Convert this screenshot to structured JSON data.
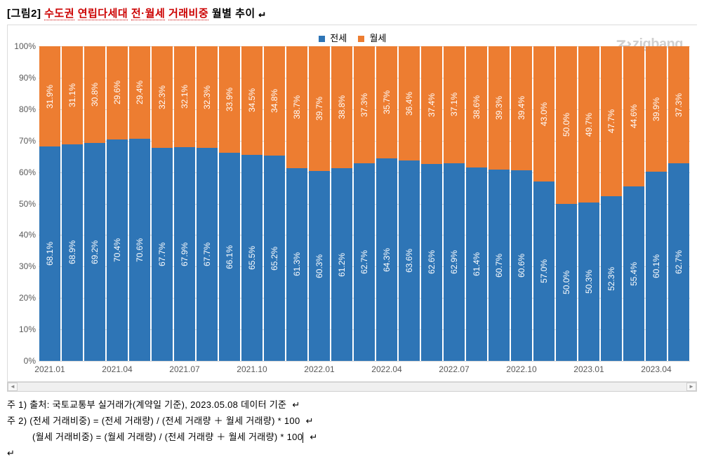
{
  "title": {
    "prefix": "[그림2] ",
    "red_words": [
      "수도권",
      "연립다세대",
      "전·월세",
      "거래비중"
    ],
    "suffix": " 월별 추이 "
  },
  "chart": {
    "type": "stacked-bar-100",
    "background_color": "#ffffff",
    "grid_color": "#d9d9d9",
    "axis_text_color": "#595959",
    "title_red_color": "#cc0000",
    "legend": {
      "items": [
        {
          "label": "전세",
          "color": "#2e75b6"
        },
        {
          "label": "월세",
          "color": "#ed7d31"
        }
      ]
    },
    "brand": {
      "text": "zigbang",
      "color": "#d0d0d0"
    },
    "y": {
      "min": 0,
      "max": 100,
      "step": 10,
      "suffix": "%",
      "tick_labels": [
        "0%",
        "10%",
        "20%",
        "30%",
        "40%",
        "50%",
        "60%",
        "70%",
        "80%",
        "90%",
        "100%"
      ]
    },
    "series_colors": {
      "jeonse": "#2e75b6",
      "wolse": "#ed7d31"
    },
    "bar_label_color": "#ffffff",
    "bar_label_fontsize": 12,
    "data": [
      {
        "period": "2021.01",
        "jeonse": 68.1,
        "wolse": 31.9,
        "xlabel": "2021.01"
      },
      {
        "period": "2021.02",
        "jeonse": 68.9,
        "wolse": 31.1,
        "xlabel": null
      },
      {
        "period": "2021.03",
        "jeonse": 69.2,
        "wolse": 30.8,
        "xlabel": null
      },
      {
        "period": "2021.04",
        "jeonse": 70.4,
        "wolse": 29.6,
        "xlabel": "2021.04"
      },
      {
        "period": "2021.05",
        "jeonse": 70.6,
        "wolse": 29.4,
        "xlabel": null
      },
      {
        "period": "2021.06",
        "jeonse": 67.7,
        "wolse": 32.3,
        "xlabel": null
      },
      {
        "period": "2021.07",
        "jeonse": 67.9,
        "wolse": 32.1,
        "xlabel": "2021.07"
      },
      {
        "period": "2021.08",
        "jeonse": 67.7,
        "wolse": 32.3,
        "xlabel": null
      },
      {
        "period": "2021.09",
        "jeonse": 66.1,
        "wolse": 33.9,
        "xlabel": null
      },
      {
        "period": "2021.10",
        "jeonse": 65.5,
        "wolse": 34.5,
        "xlabel": "2021.10"
      },
      {
        "period": "2021.11",
        "jeonse": 65.2,
        "wolse": 34.8,
        "xlabel": null
      },
      {
        "period": "2021.12",
        "jeonse": 61.3,
        "wolse": 38.7,
        "xlabel": null
      },
      {
        "period": "2022.01",
        "jeonse": 60.3,
        "wolse": 39.7,
        "xlabel": "2022.01"
      },
      {
        "period": "2022.02",
        "jeonse": 61.2,
        "wolse": 38.8,
        "xlabel": null
      },
      {
        "period": "2022.03",
        "jeonse": 62.7,
        "wolse": 37.3,
        "xlabel": null
      },
      {
        "period": "2022.04",
        "jeonse": 64.3,
        "wolse": 35.7,
        "xlabel": "2022.04"
      },
      {
        "period": "2022.05",
        "jeonse": 63.6,
        "wolse": 36.4,
        "xlabel": null
      },
      {
        "period": "2022.06",
        "jeonse": 62.6,
        "wolse": 37.4,
        "xlabel": null
      },
      {
        "period": "2022.07",
        "jeonse": 62.9,
        "wolse": 37.1,
        "xlabel": "2022.07"
      },
      {
        "period": "2022.08",
        "jeonse": 61.4,
        "wolse": 38.6,
        "xlabel": null
      },
      {
        "period": "2022.09",
        "jeonse": 60.7,
        "wolse": 39.3,
        "xlabel": null
      },
      {
        "period": "2022.10",
        "jeonse": 60.6,
        "wolse": 39.4,
        "xlabel": "2022.10"
      },
      {
        "period": "2022.11",
        "jeonse": 57.0,
        "wolse": 43.0,
        "xlabel": null
      },
      {
        "period": "2022.12",
        "jeonse": 50.0,
        "wolse": 50.0,
        "xlabel": null
      },
      {
        "period": "2023.01",
        "jeonse": 50.3,
        "wolse": 49.7,
        "xlabel": "2023.01"
      },
      {
        "period": "2023.02",
        "jeonse": 52.3,
        "wolse": 47.7,
        "xlabel": null
      },
      {
        "period": "2023.03",
        "jeonse": 55.4,
        "wolse": 44.6,
        "xlabel": null
      },
      {
        "period": "2023.04",
        "jeonse": 60.1,
        "wolse": 39.9,
        "xlabel": "2023.04"
      },
      {
        "period": "2023.05",
        "jeonse": 62.7,
        "wolse": 37.3,
        "xlabel": null
      }
    ]
  },
  "notes": {
    "line1": "주 1)  출처: 국토교통부 실거래가(계약일 기준), 2023.05.08 데이터 기준",
    "line2": "주 2)  (전세 거래비중) = (전세 거래량) / (전세 거래량 ＋ 월세 거래량) * 100",
    "line3": "(월세 거래비중) = (월세 거래량) / (전세 거래량 ＋ 월세 거래량) * 100"
  }
}
